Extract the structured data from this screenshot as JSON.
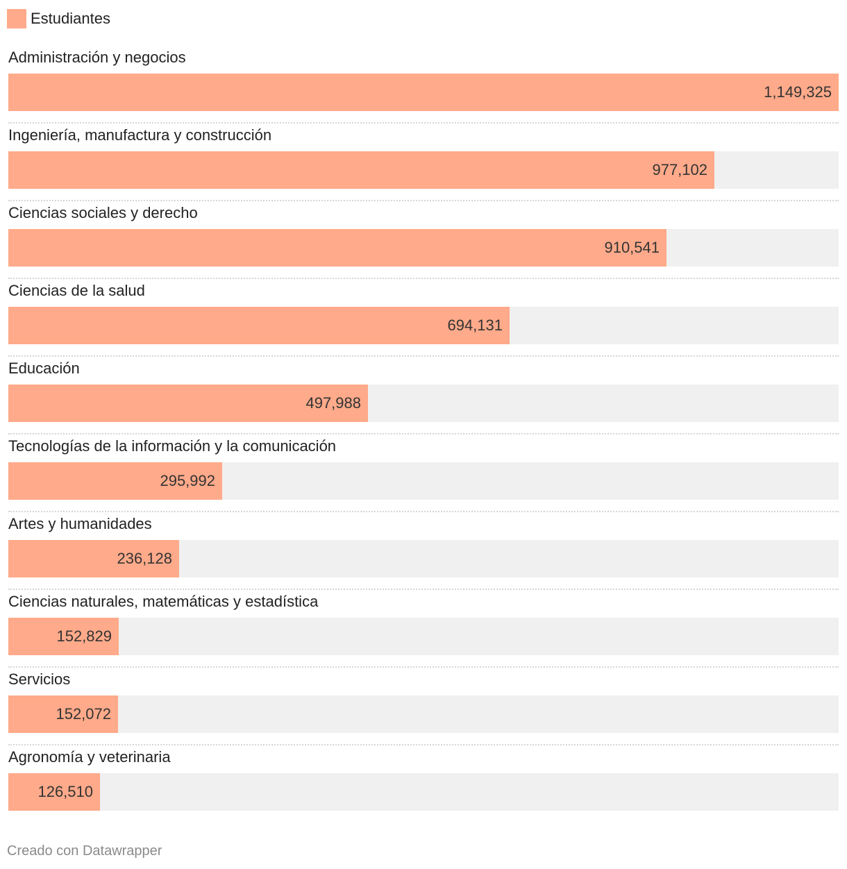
{
  "colors": {
    "bar": "#ffaa8a",
    "track": "#f0f0f0"
  },
  "legend": {
    "label": "Estudiantes"
  },
  "chart_data": {
    "type": "bar",
    "orientation": "horizontal",
    "title": "",
    "xlabel": "",
    "ylabel": "",
    "xlim": [
      0,
      1149325
    ],
    "grid": false,
    "legend_position": "top-left",
    "categories": [
      "Administración y negocios",
      "Ingeniería, manufactura y construcción",
      "Ciencias sociales y derecho",
      "Ciencias de la salud",
      "Educación",
      "Tecnologías de la información y la comunicación",
      "Artes y humanidades",
      "Ciencias naturales, matemáticas y estadística",
      "Servicios",
      "Agronomía y veterinaria"
    ],
    "series": [
      {
        "name": "Estudiantes",
        "values": [
          1149325,
          977102,
          910541,
          694131,
          497988,
          295992,
          236128,
          152829,
          152072,
          126510
        ],
        "labels": [
          "1,149,325",
          "977,102",
          "910,541",
          "694,131",
          "497,988",
          "295,992",
          "236,128",
          "152,829",
          "152,072",
          "126,510"
        ]
      }
    ]
  },
  "footer": {
    "credit": "Creado con Datawrapper"
  }
}
